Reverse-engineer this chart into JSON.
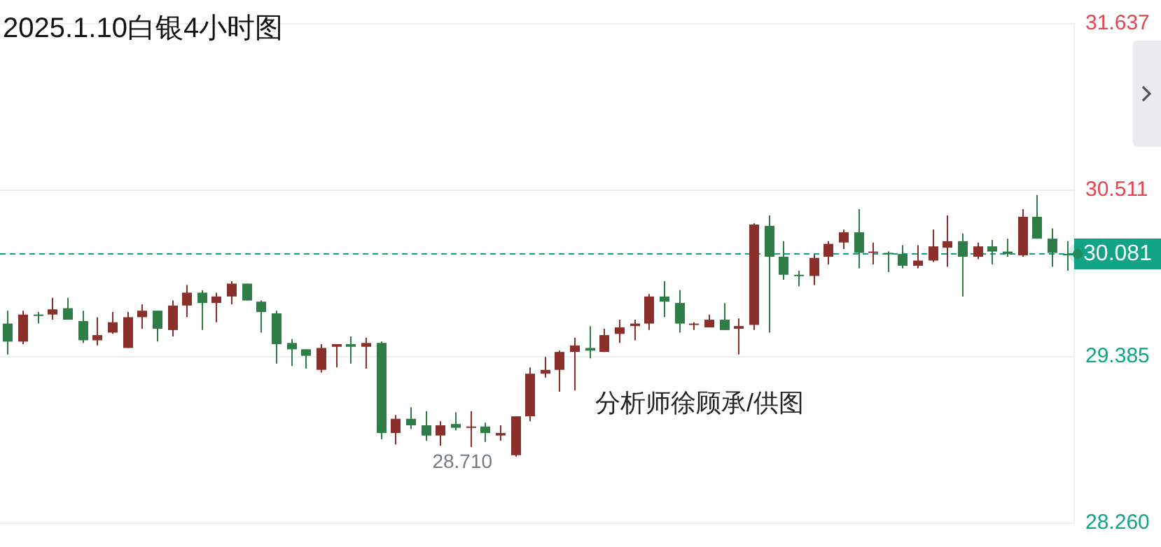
{
  "chart_data": {
    "type": "candlestick",
    "title": "2025.1.10白银4小时图",
    "categories": [
      null,
      null,
      null,
      null,
      null,
      null,
      null,
      null,
      null,
      null,
      null,
      null,
      null,
      null,
      null,
      null,
      null,
      null,
      null,
      null,
      null,
      null,
      null,
      null,
      null,
      null,
      null,
      null,
      null,
      null,
      null,
      null,
      null,
      null,
      null,
      null,
      null,
      null,
      null,
      null,
      null,
      null,
      null,
      null,
      null,
      null,
      null,
      null,
      null,
      null,
      null,
      null,
      null,
      null,
      null,
      null,
      null,
      null,
      null,
      null,
      null,
      null,
      null,
      null,
      null,
      null,
      null,
      null,
      null,
      null,
      null,
      null
    ],
    "ohlc": [
      [
        29.61,
        29.697,
        29.401,
        29.488
      ],
      [
        29.488,
        29.697,
        29.471,
        29.671
      ],
      [
        29.671,
        29.688,
        29.61,
        29.671
      ],
      [
        29.671,
        29.784,
        29.636,
        29.706
      ],
      [
        29.714,
        29.784,
        29.636,
        29.636
      ],
      [
        29.627,
        29.697,
        29.479,
        29.497
      ],
      [
        29.497,
        29.653,
        29.462,
        29.532
      ],
      [
        29.549,
        29.688,
        29.54,
        29.619
      ],
      [
        29.445,
        29.688,
        29.445,
        29.653
      ],
      [
        29.653,
        29.74,
        29.575,
        29.697
      ],
      [
        29.697,
        29.697,
        29.488,
        29.575
      ],
      [
        29.566,
        29.766,
        29.523,
        29.732
      ],
      [
        29.732,
        29.871,
        29.653,
        29.819
      ],
      [
        29.819,
        29.836,
        29.566,
        29.749
      ],
      [
        29.749,
        29.819,
        29.619,
        29.793
      ],
      [
        29.793,
        29.897,
        29.74,
        29.88
      ],
      [
        29.88,
        29.88,
        29.766,
        29.766
      ],
      [
        29.758,
        29.766,
        29.549,
        29.688
      ],
      [
        29.679,
        29.697,
        29.34,
        29.471
      ],
      [
        29.479,
        29.505,
        29.323,
        29.436
      ],
      [
        29.436,
        29.436,
        29.305,
        29.392
      ],
      [
        29.297,
        29.471,
        29.279,
        29.445
      ],
      [
        29.453,
        29.471,
        29.314,
        29.471
      ],
      [
        29.471,
        29.523,
        29.34,
        29.453
      ],
      [
        29.453,
        29.514,
        29.305,
        29.479
      ],
      [
        29.479,
        29.488,
        28.827,
        28.87
      ],
      [
        28.87,
        28.992,
        28.792,
        28.966
      ],
      [
        28.966,
        29.044,
        28.897,
        28.922
      ],
      [
        28.922,
        29.018,
        28.818,
        28.853
      ],
      [
        28.853,
        28.949,
        28.784,
        28.922
      ],
      [
        28.931,
        29.01,
        28.888,
        28.905
      ],
      [
        28.905,
        29.018,
        28.775,
        28.914
      ],
      [
        28.914,
        28.94,
        28.81,
        28.87
      ],
      [
        28.853,
        28.922,
        28.818,
        28.87
      ],
      [
        28.72,
        28.983,
        28.71,
        28.983
      ],
      [
        28.983,
        29.314,
        28.949,
        29.271
      ],
      [
        29.271,
        29.384,
        29.245,
        29.297
      ],
      [
        29.297,
        29.427,
        29.149,
        29.418
      ],
      [
        29.418,
        29.514,
        29.157,
        29.462
      ],
      [
        29.445,
        29.593,
        29.375,
        29.427
      ],
      [
        29.418,
        29.575,
        29.418,
        29.532
      ],
      [
        29.54,
        29.636,
        29.479,
        29.584
      ],
      [
        29.593,
        29.636,
        29.497,
        29.61
      ],
      [
        29.61,
        29.81,
        29.566,
        29.793
      ],
      [
        29.793,
        29.897,
        29.653,
        29.758
      ],
      [
        29.749,
        29.836,
        29.549,
        29.61
      ],
      [
        29.61,
        29.619,
        29.566,
        29.61
      ],
      [
        29.584,
        29.671,
        29.584,
        29.636
      ],
      [
        29.636,
        29.749,
        29.566,
        29.566
      ],
      [
        29.575,
        29.645,
        29.401,
        29.593
      ],
      [
        29.601,
        30.288,
        29.566,
        30.28
      ],
      [
        30.271,
        30.341,
        29.549,
        30.062
      ],
      [
        30.062,
        30.167,
        29.906,
        29.94
      ],
      [
        29.94,
        29.967,
        29.862,
        29.932
      ],
      [
        29.932,
        30.08,
        29.871,
        30.054
      ],
      [
        30.062,
        30.167,
        30.01,
        30.149
      ],
      [
        30.158,
        30.245,
        30.114,
        30.227
      ],
      [
        30.227,
        30.384,
        29.984,
        30.088
      ],
      [
        30.088,
        30.158,
        30.01,
        30.097
      ],
      [
        30.088,
        30.097,
        29.958,
        30.08
      ],
      [
        30.08,
        30.14,
        29.984,
        30.001
      ],
      [
        30.001,
        30.14,
        29.984,
        30.036
      ],
      [
        30.036,
        30.245,
        30.027,
        30.132
      ],
      [
        30.123,
        30.341,
        29.993,
        30.167
      ],
      [
        30.167,
        30.219,
        29.793,
        30.062
      ],
      [
        30.062,
        30.158,
        30.045,
        30.132
      ],
      [
        30.132,
        30.175,
        30.01,
        30.097
      ],
      [
        30.097,
        30.184,
        30.062,
        30.08
      ],
      [
        30.071,
        30.384,
        30.062,
        30.332
      ],
      [
        30.332,
        30.48,
        30.184,
        30.184
      ],
      [
        30.184,
        30.254,
        29.993,
        30.088
      ],
      [
        30.08,
        30.167,
        29.967,
        30.081
      ]
    ],
    "colors": [
      "#2e7d46",
      "#8b2f2a",
      "#2e7d46",
      "#8b2f2a",
      "#2e7d46",
      "#2e7d46",
      "#8b2f2a",
      "#8b2f2a",
      "#8b2f2a",
      "#8b2f2a",
      "#2e7d46",
      "#8b2f2a",
      "#8b2f2a",
      "#2e7d46",
      "#8b2f2a",
      "#8b2f2a",
      "#2e7d46",
      "#2e7d46",
      "#2e7d46",
      "#2e7d46",
      "#2e7d46",
      "#8b2f2a",
      "#8b2f2a",
      "#2e7d46",
      "#8b2f2a",
      "#2e7d46",
      "#8b2f2a",
      "#2e7d46",
      "#2e7d46",
      "#8b2f2a",
      "#2e7d46",
      "#8b2f2a",
      "#2e7d46",
      "#8b2f2a",
      "#8b2f2a",
      "#8b2f2a",
      "#8b2f2a",
      "#8b2f2a",
      "#8b2f2a",
      "#2e7d46",
      "#8b2f2a",
      "#8b2f2a",
      "#8b2f2a",
      "#8b2f2a",
      "#2e7d46",
      "#2e7d46",
      "#8b2f2a",
      "#8b2f2a",
      "#2e7d46",
      "#8b2f2a",
      "#8b2f2a",
      "#2e7d46",
      "#2e7d46",
      "#2e7d46",
      "#8b2f2a",
      "#8b2f2a",
      "#8b2f2a",
      "#2e7d46",
      "#8b2f2a",
      "#2e7d46",
      "#2e7d46",
      "#8b2f2a",
      "#8b2f2a",
      "#8b2f2a",
      "#2e7d46",
      "#8b2f2a",
      "#2e7d46",
      "#2e7d46",
      "#8b2f2a",
      "#2e7d46",
      "#2e7d46",
      "#2e7d46"
    ],
    "ylim": [
      28.26,
      31.637
    ],
    "yticks": [
      {
        "value": 28.26,
        "label": "28.260"
      },
      29.385,
      30.511,
      31.637
    ],
    "ref_lines": [
      {
        "axis": "y",
        "value": 30.081,
        "label": "30.081",
        "color": "#13a386",
        "line_style": "dashed"
      }
    ],
    "annotations": [
      "28.710",
      "分析师徐顾承/供图"
    ],
    "grid": "y",
    "tick_labels": "y"
  }
}
